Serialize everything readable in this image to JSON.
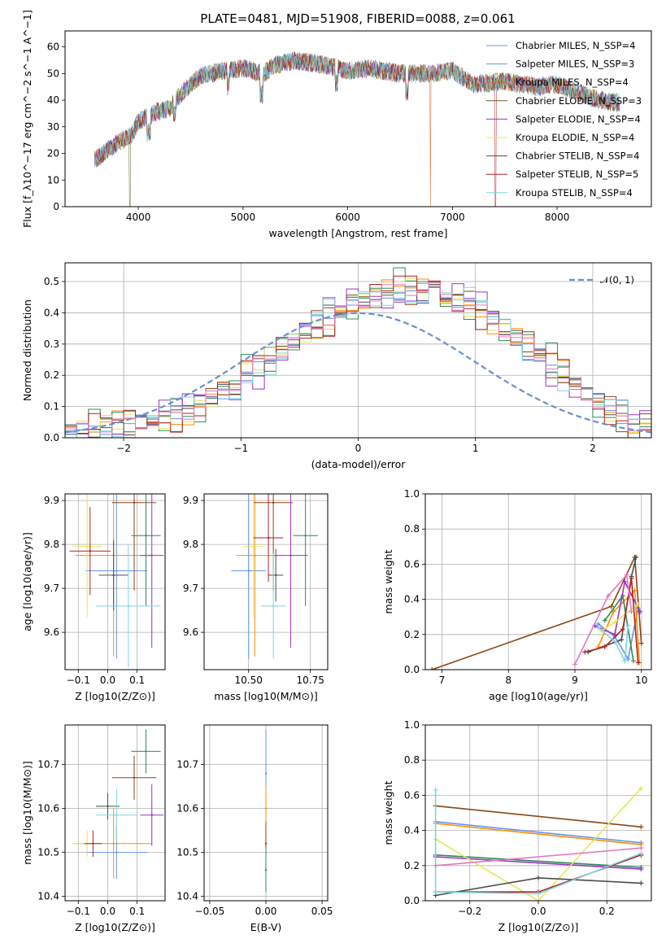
{
  "title": "PLATE=0481, MJD=51908, FIBERID=0088, z=0.061",
  "colors": [
    "#6495ed",
    "#ff8c00",
    "#8b4513",
    "#2e8b57",
    "#9932cc",
    "#e6e65a",
    "#4d4d4d",
    "#b22222",
    "#7fd5e0",
    "#e377c2"
  ],
  "chart_data": [
    {
      "type": "line",
      "id": "spectrum",
      "title": "PLATE=0481, MJD=51908, FIBERID=0088, z=0.061",
      "xlabel": "wavelength [Angstrom, rest frame]",
      "ylabel": "Flux [f_λ10^−17 erg cm^−2 s^−1 A^−1]",
      "xlim": [
        3300,
        8900
      ],
      "ylim": [
        0,
        66
      ],
      "xticks": [
        "4000",
        "5000",
        "6000",
        "7000",
        "8000"
      ],
      "yticks": [
        "0",
        "10",
        "20",
        "30",
        "40",
        "50",
        "60"
      ],
      "grid": false,
      "legend_position": "top-right",
      "envelope": {
        "x": [
          3600,
          3700,
          3800,
          3900,
          3950,
          4000,
          4100,
          4200,
          4300,
          4400,
          4500,
          4600,
          4800,
          5000,
          5200,
          5300,
          5500,
          5800,
          6000,
          6200,
          6500,
          6800,
          7000,
          7200,
          7500,
          7800,
          8000,
          8200,
          8400,
          8600
        ],
        "y": [
          18,
          21,
          24,
          26,
          28,
          32,
          34,
          36,
          37,
          42,
          46,
          49,
          51,
          52,
          50,
          53,
          55,
          53,
          51,
          52,
          50,
          50,
          51,
          46,
          47,
          45,
          46,
          43,
          40,
          39
        ]
      },
      "series": [
        {
          "name": "Chabrier MILES, N_SSP=4"
        },
        {
          "name": "Salpeter MILES, N_SSP=3"
        },
        {
          "name": "Kroupa MILES, N_SSP=4"
        },
        {
          "name": "Chabrier ELODIE, N_SSP=3"
        },
        {
          "name": "Salpeter ELODIE, N_SSP=4"
        },
        {
          "name": "Kroupa ELODIE, N_SSP=4"
        },
        {
          "name": "Chabrier STELIB, N_SSP=4"
        },
        {
          "name": "Salpeter STELIB, N_SSP=5"
        },
        {
          "name": "Kroupa STELIB, N_SSP=4"
        }
      ],
      "series_colors": [
        "#6495ed",
        "#6495ed",
        "#d2691e",
        "#556b2f",
        "#9932cc",
        "#e6e65a",
        "#4d4d4d",
        "#b22222",
        "#7fd5e0"
      ],
      "dropouts_x": [
        3920,
        6790,
        7410
      ]
    },
    {
      "type": "histogram",
      "id": "residuals",
      "xlabel": "(data-model)/error",
      "ylabel": "Normed distribution",
      "xlim": [
        -2.5,
        2.5
      ],
      "ylim": [
        0,
        0.56
      ],
      "xticks": [
        "−2",
        "−1",
        "0",
        "1",
        "2"
      ],
      "yticks": [
        "0.0",
        "0.1",
        "0.2",
        "0.3",
        "0.4",
        "0.5"
      ],
      "grid": true,
      "bin_width": 0.1,
      "bin_start": -2.5,
      "reference_curve": {
        "name": "𝒩(0, 1)",
        "mean": 0,
        "sigma": 1,
        "color": "#6a8fd8"
      },
      "base_values": [
        0.018,
        0.02,
        0.024,
        0.028,
        0.034,
        0.04,
        0.048,
        0.056,
        0.068,
        0.08,
        0.093,
        0.11,
        0.128,
        0.148,
        0.17,
        0.195,
        0.22,
        0.25,
        0.28,
        0.31,
        0.34,
        0.37,
        0.39,
        0.41,
        0.43,
        0.44,
        0.45,
        0.46,
        0.47,
        0.47,
        0.47,
        0.47,
        0.46,
        0.44,
        0.43,
        0.41,
        0.38,
        0.35,
        0.32,
        0.29,
        0.26,
        0.23,
        0.2,
        0.17,
        0.14,
        0.115,
        0.09,
        0.07,
        0.055,
        0.04
      ]
    },
    {
      "type": "scatter",
      "id": "age-vs-Z",
      "xlabel": "Z [log10(Z/Z⊙)]",
      "ylabel": "age [log10(age/yr)]",
      "xlim": [
        -0.145,
        0.195
      ],
      "ylim": [
        9.515,
        9.915
      ],
      "xticks": [
        "−0.1",
        "0.0",
        "0.1"
      ],
      "yticks": [
        "9.6",
        "9.7",
        "9.8",
        "9.9"
      ],
      "grid": true,
      "points": [
        {
          "x": 0.03,
          "y": 9.74,
          "xerr": 0.105,
          "yerr": 0.2
        },
        {
          "x": 0.02,
          "y": 9.775,
          "xerr": 0.13,
          "yerr": 0.23
        },
        {
          "x": 0.09,
          "y": 9.895,
          "xerr": 0.075,
          "yerr": 0.2
        },
        {
          "x": 0.13,
          "y": 9.82,
          "xerr": 0.05,
          "yerr": 0.16
        },
        {
          "x": 0.15,
          "y": 9.775,
          "xerr": 0.04,
          "yerr": 0.21
        },
        {
          "x": -0.07,
          "y": 9.795,
          "xerr": 0.05,
          "yerr": 0.16
        },
        {
          "x": 0.02,
          "y": 9.73,
          "xerr": 0.05,
          "yerr": 0.08
        },
        {
          "x": -0.06,
          "y": 9.785,
          "xerr": 0.07,
          "yerr": 0.1
        },
        {
          "x": 0.07,
          "y": 9.66,
          "xerr": 0.11,
          "yerr": 0.14
        }
      ]
    },
    {
      "type": "scatter",
      "id": "age-vs-mass",
      "xlabel": "mass [log10(M/M⊙)]",
      "ylabel": "",
      "xlim": [
        10.32,
        10.82
      ],
      "ylim": [
        9.515,
        9.915
      ],
      "xticks": [
        "10.50",
        "10.75"
      ],
      "yticks": [
        "9.6",
        "9.7",
        "9.8",
        "9.9"
      ],
      "grid": true,
      "points": [
        {
          "x": 10.5,
          "y": 9.74,
          "xerr": 0.07,
          "yerr": 0.2
        },
        {
          "x": 10.525,
          "y": 9.775,
          "xerr": 0.075,
          "yerr": 0.23
        },
        {
          "x": 10.6,
          "y": 9.895,
          "xerr": 0.08,
          "yerr": 0.2
        },
        {
          "x": 10.73,
          "y": 9.82,
          "xerr": 0.05,
          "yerr": 0.16
        },
        {
          "x": 10.67,
          "y": 9.775,
          "xerr": 0.07,
          "yerr": 0.21
        },
        {
          "x": 10.52,
          "y": 9.795,
          "xerr": 0.04,
          "yerr": 0.16
        },
        {
          "x": 10.61,
          "y": 9.73,
          "xerr": 0.03,
          "yerr": 0.06
        },
        {
          "x": 10.58,
          "y": 9.815,
          "xerr": 0.06,
          "yerr": 0.1
        },
        {
          "x": 10.6,
          "y": 9.66,
          "xerr": 0.05,
          "yerr": 0.12
        }
      ]
    },
    {
      "type": "line",
      "id": "mass-weight-vs-age",
      "xlabel": "age [log10(age/yr)]",
      "ylabel": "mass weight",
      "xlim": [
        6.75,
        10.15
      ],
      "ylim": [
        0,
        1
      ],
      "xticks": [
        "7",
        "8",
        "9",
        "10"
      ],
      "yticks": [
        "0.0",
        "0.2",
        "0.4",
        "0.6",
        "0.8",
        "1.0"
      ],
      "grid": true,
      "series": [
        {
          "x": [
            9.35,
            9.6,
            9.8,
            9.95
          ],
          "y": [
            0.26,
            0.19,
            0.06,
            0.35
          ]
        },
        {
          "x": [
            9.35,
            9.58,
            9.9,
            9.97
          ],
          "y": [
            0.13,
            0.33,
            0.45,
            0.04
          ]
        },
        {
          "x": [
            6.85,
            9.55,
            9.9,
            10.0
          ],
          "y": [
            0.0,
            0.36,
            0.64,
            0.15
          ]
        },
        {
          "x": [
            9.45,
            9.72,
            9.88
          ],
          "y": [
            0.28,
            0.42,
            0.05
          ]
        },
        {
          "x": [
            9.3,
            9.6,
            9.75,
            9.98
          ],
          "y": [
            0.25,
            0.2,
            0.5,
            0.33
          ]
        },
        {
          "x": [
            9.4,
            9.6,
            9.95
          ],
          "y": [
            0.22,
            0.27,
            0.37
          ]
        },
        {
          "x": [
            9.2,
            9.7,
            9.85,
            9.92
          ],
          "y": [
            0.1,
            0.17,
            0.53,
            0.64
          ]
        },
        {
          "x": [
            9.15,
            9.45,
            9.72,
            9.85,
            9.95
          ],
          "y": [
            0.1,
            0.13,
            0.23,
            0.52,
            0.04
          ]
        },
        {
          "x": [
            9.35,
            9.6,
            9.75,
            9.8
          ],
          "y": [
            0.24,
            0.16,
            0.05,
            0.25
          ]
        },
        {
          "x": [
            9.0,
            9.5,
            9.78,
            9.85
          ],
          "y": [
            0.03,
            0.42,
            0.54,
            0.33
          ]
        }
      ]
    },
    {
      "type": "scatter",
      "id": "mass-vs-Z",
      "xlabel": "Z [log10(Z/Z⊙)]",
      "ylabel": "mass [log10(M/M⊙)]",
      "xlim": [
        -0.145,
        0.195
      ],
      "ylim": [
        10.39,
        10.79
      ],
      "xticks": [
        "−0.1",
        "0.0",
        "0.1"
      ],
      "yticks": [
        "10.4",
        "10.5",
        "10.6",
        "10.7"
      ],
      "grid": true,
      "points": [
        {
          "x": 0.03,
          "y": 10.5,
          "xerr": 0.105,
          "yerr": 0.06
        },
        {
          "x": 0.02,
          "y": 10.52,
          "xerr": 0.13,
          "yerr": 0.08
        },
        {
          "x": 0.09,
          "y": 10.67,
          "xerr": 0.075,
          "yerr": 0.05
        },
        {
          "x": 0.13,
          "y": 10.73,
          "xerr": 0.05,
          "yerr": 0.05
        },
        {
          "x": 0.15,
          "y": 10.585,
          "xerr": 0.04,
          "yerr": 0.07
        },
        {
          "x": -0.07,
          "y": 10.52,
          "xerr": 0.05,
          "yerr": 0.03
        },
        {
          "x": 0.0,
          "y": 10.605,
          "xerr": 0.04,
          "yerr": 0.03
        },
        {
          "x": -0.05,
          "y": 10.52,
          "xerr": 0.03,
          "yerr": 0.03
        },
        {
          "x": 0.03,
          "y": 10.585,
          "xerr": 0.07,
          "yerr": 0.06
        }
      ]
    },
    {
      "type": "scatter",
      "id": "mass-vs-ebv",
      "xlabel": "E(B-V)",
      "ylabel": "",
      "xlim": [
        -0.055,
        0.055
      ],
      "ylim": [
        10.39,
        10.79
      ],
      "xticks": [
        "−0.05",
        "0.00",
        "0.05"
      ],
      "yticks": [
        "10.4",
        "10.5",
        "10.6",
        "10.7"
      ],
      "grid": true,
      "points": [
        {
          "x": 0.0,
          "y": 10.68,
          "yerr": 0.1
        },
        {
          "x": 0.0,
          "y": 10.6,
          "yerr": 0.05
        },
        {
          "x": 0.0,
          "y": 10.52,
          "yerr": 0.05
        },
        {
          "x": 0.0,
          "y": 10.46,
          "yerr": 0.05
        }
      ]
    },
    {
      "type": "line",
      "id": "mass-weight-vs-Z",
      "xlabel": "Z [log10(Z/Z⊙)]",
      "ylabel": "mass weight",
      "xlim": [
        -0.33,
        0.33
      ],
      "ylim": [
        0,
        1
      ],
      "xticks": [
        "−0.2",
        "0.0",
        "0.2"
      ],
      "yticks": [
        "0.0",
        "0.2",
        "0.4",
        "0.6",
        "0.8",
        "1.0"
      ],
      "grid": true,
      "series": [
        {
          "x": [
            -0.3,
            0.3
          ],
          "y": [
            0.45,
            0.33
          ]
        },
        {
          "x": [
            -0.3,
            0.3
          ],
          "y": [
            0.44,
            0.32
          ]
        },
        {
          "x": [
            -0.3,
            0.3
          ],
          "y": [
            0.54,
            0.42
          ]
        },
        {
          "x": [
            -0.3,
            0.3
          ],
          "y": [
            0.26,
            0.19
          ]
        },
        {
          "x": [
            -0.3,
            0.3
          ],
          "y": [
            0.25,
            0.18
          ]
        },
        {
          "x": [
            -0.3,
            0.0,
            0.3
          ],
          "y": [
            0.35,
            0.0,
            0.64
          ]
        },
        {
          "x": [
            -0.3,
            0.0,
            0.3
          ],
          "y": [
            0.03,
            0.13,
            0.1
          ]
        },
        {
          "x": [
            -0.3,
            0.0,
            0.3
          ],
          "y": [
            0.05,
            0.05,
            0.26
          ]
        },
        {
          "x": [
            -0.3,
            -0.3,
            0.0,
            0.3
          ],
          "y": [
            0.63,
            0.05,
            0.04,
            0.27
          ]
        },
        {
          "x": [
            -0.3,
            0.3
          ],
          "y": [
            0.2,
            0.3
          ]
        }
      ]
    }
  ]
}
